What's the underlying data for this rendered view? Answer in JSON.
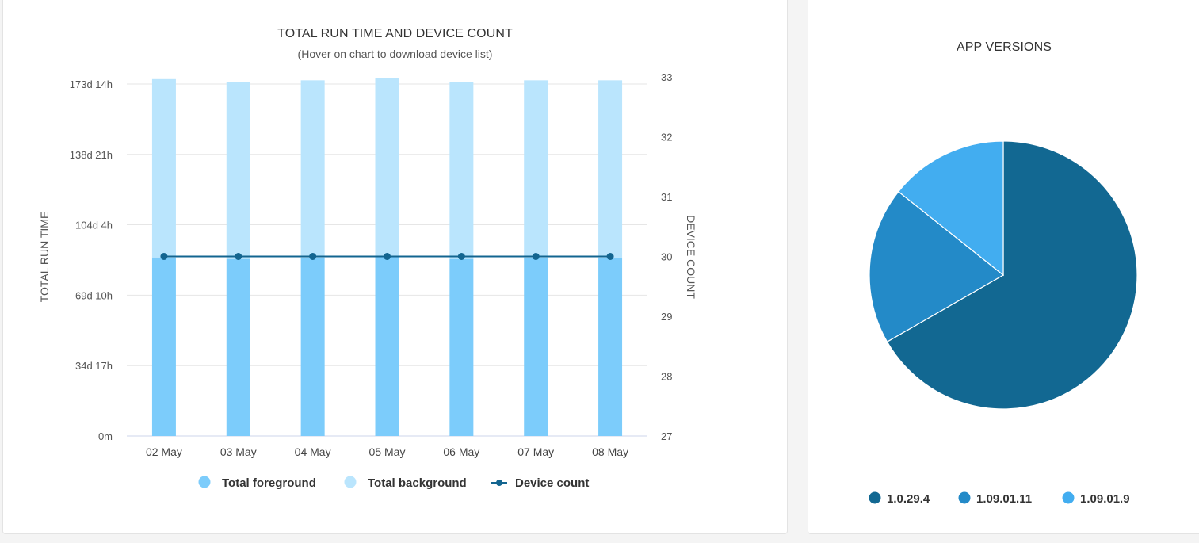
{
  "runtime_card": {
    "title": "TOTAL RUN TIME AND DEVICE COUNT",
    "subtitle": "(Hover on chart to download device list)"
  },
  "versions_card": {
    "title": "APP VERSIONS"
  },
  "chart_data": [
    {
      "type": "bar",
      "title": "TOTAL RUN TIME AND DEVICE COUNT",
      "subtitle": "(Hover on chart to download device list)",
      "categories": [
        "02 May",
        "03 May",
        "04 May",
        "05 May",
        "06 May",
        "07 May",
        "08 May"
      ],
      "stacked": true,
      "ylabel": "TOTAL RUN TIME",
      "y_ticks": [
        "0m",
        "34d 17h",
        "69d 10h",
        "104d 4h",
        "138d 21h",
        "173d 14h"
      ],
      "y_tick_values": [
        0,
        34.71,
        69.42,
        104.17,
        138.88,
        173.58
      ],
      "ylim": [
        0,
        173.58
      ],
      "y_unit": "days",
      "y2label": "DEVICE COUNT",
      "y2_ticks": [
        27,
        28,
        29,
        30,
        31,
        32,
        33
      ],
      "y2lim": [
        27,
        33
      ],
      "grid": true,
      "legend": "bottom-center",
      "series": [
        {
          "name": "Total foreground",
          "type": "bar",
          "axis": "left",
          "color": "#7cccfb",
          "values": [
            88.0,
            87.3,
            87.7,
            88.2,
            87.3,
            87.7,
            87.7
          ]
        },
        {
          "name": "Total background",
          "type": "bar",
          "axis": "left",
          "color": "#bae5fd",
          "values": [
            88.0,
            87.3,
            87.7,
            88.2,
            87.3,
            87.7,
            87.7
          ]
        },
        {
          "name": "Device count",
          "type": "line",
          "axis": "right",
          "color": "#136590",
          "values": [
            30,
            30,
            30,
            30,
            30,
            30,
            30
          ]
        }
      ]
    },
    {
      "type": "pie",
      "title": "APP VERSIONS",
      "legend": "bottom-center",
      "labels": [
        "1.0.29.4",
        "1.09.01.11",
        "1.09.01.9"
      ],
      "values": [
        66.7,
        19.0,
        14.3
      ],
      "colors": [
        "#126892",
        "#238ac8",
        "#42adf0"
      ]
    }
  ]
}
